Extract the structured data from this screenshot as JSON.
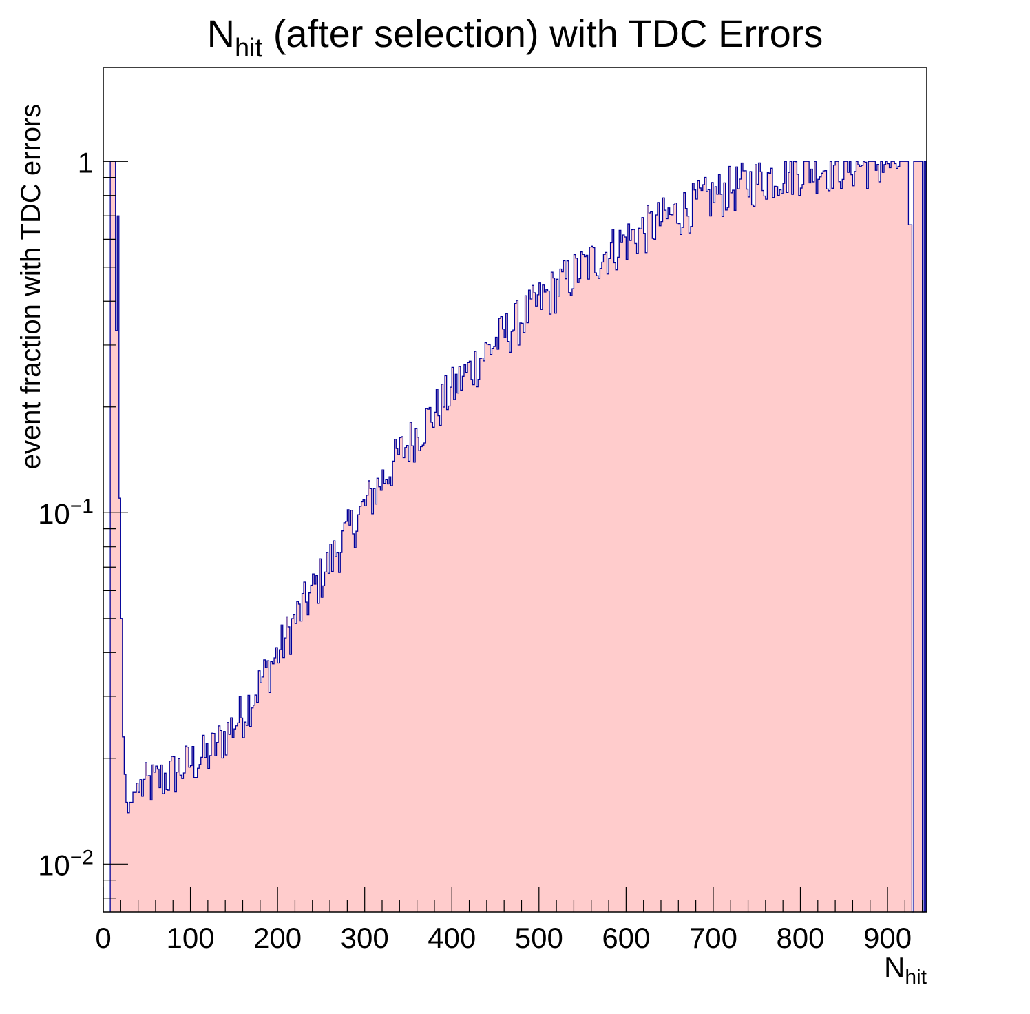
{
  "chart_data": {
    "type": "histogram",
    "title": {
      "main": "N",
      "sub": "hit",
      "rest": " (after selection) with TDC Errors"
    },
    "xlabel": {
      "main": "N",
      "sub": "hit"
    },
    "ylabel": "event fraction with TDC errors",
    "x_range": [
      0,
      945
    ],
    "y_range": [
      0.0073,
      1.85
    ],
    "y_scale": "log",
    "bin_width": 2,
    "grid": false,
    "legend": "none",
    "x_ticks": [
      "0",
      "100",
      "200",
      "300",
      "400",
      "500",
      "600",
      "700",
      "800",
      "900"
    ],
    "y_ticks": [
      {
        "value": 1,
        "base": "1",
        "exp": ""
      },
      {
        "value": 0.1,
        "base": "10",
        "exp": "−1"
      },
      {
        "value": 0.01,
        "base": "10",
        "exp": "−2"
      }
    ],
    "fill_color": "#ffcccc",
    "line_color": "#000099",
    "early_bins": [
      [
        8,
        1.0
      ],
      [
        10,
        1.0
      ],
      [
        12,
        1.0
      ],
      [
        14,
        0.33
      ],
      [
        16,
        0.7
      ],
      [
        18,
        0.11
      ],
      [
        20,
        0.05
      ],
      [
        22,
        0.023
      ],
      [
        24,
        0.018
      ],
      [
        26,
        0.015
      ],
      [
        28,
        0.014
      ],
      [
        30,
        0.015
      ],
      [
        32,
        0.015
      ],
      [
        34,
        0.016
      ],
      [
        36,
        0.016
      ],
      [
        38,
        0.017
      ],
      [
        40,
        0.016
      ]
    ],
    "trend_points": [
      [
        40,
        0.0165
      ],
      [
        60,
        0.0172
      ],
      [
        80,
        0.0182
      ],
      [
        100,
        0.0195
      ],
      [
        120,
        0.0205
      ],
      [
        140,
        0.0235
      ],
      [
        160,
        0.027
      ],
      [
        180,
        0.033
      ],
      [
        200,
        0.04
      ],
      [
        220,
        0.05
      ],
      [
        240,
        0.06
      ],
      [
        260,
        0.073
      ],
      [
        280,
        0.088
      ],
      [
        300,
        0.105
      ],
      [
        320,
        0.125
      ],
      [
        340,
        0.148
      ],
      [
        360,
        0.17
      ],
      [
        380,
        0.195
      ],
      [
        400,
        0.225
      ],
      [
        420,
        0.255
      ],
      [
        440,
        0.29
      ],
      [
        460,
        0.325
      ],
      [
        480,
        0.36
      ],
      [
        500,
        0.4
      ],
      [
        520,
        0.44
      ],
      [
        540,
        0.48
      ],
      [
        560,
        0.52
      ],
      [
        580,
        0.56
      ],
      [
        600,
        0.6
      ],
      [
        620,
        0.64
      ],
      [
        640,
        0.68
      ],
      [
        660,
        0.72
      ],
      [
        680,
        0.76
      ],
      [
        700,
        0.8
      ],
      [
        720,
        0.84
      ],
      [
        740,
        0.87
      ],
      [
        760,
        0.9
      ],
      [
        780,
        0.93
      ],
      [
        800,
        0.95
      ],
      [
        820,
        0.96
      ],
      [
        840,
        0.97
      ],
      [
        860,
        0.98
      ],
      [
        880,
        0.985
      ],
      [
        900,
        0.99
      ],
      [
        920,
        0.99
      ]
    ],
    "tail_bins": [
      [
        924,
        0.66
      ],
      [
        926,
        0.66
      ],
      [
        928,
        0.0073
      ],
      [
        930,
        1.0
      ],
      [
        932,
        1.0
      ],
      [
        934,
        1.0
      ],
      [
        936,
        1.0
      ],
      [
        938,
        1.0
      ],
      [
        940,
        0.0073
      ],
      [
        942,
        1.0
      ]
    ]
  }
}
